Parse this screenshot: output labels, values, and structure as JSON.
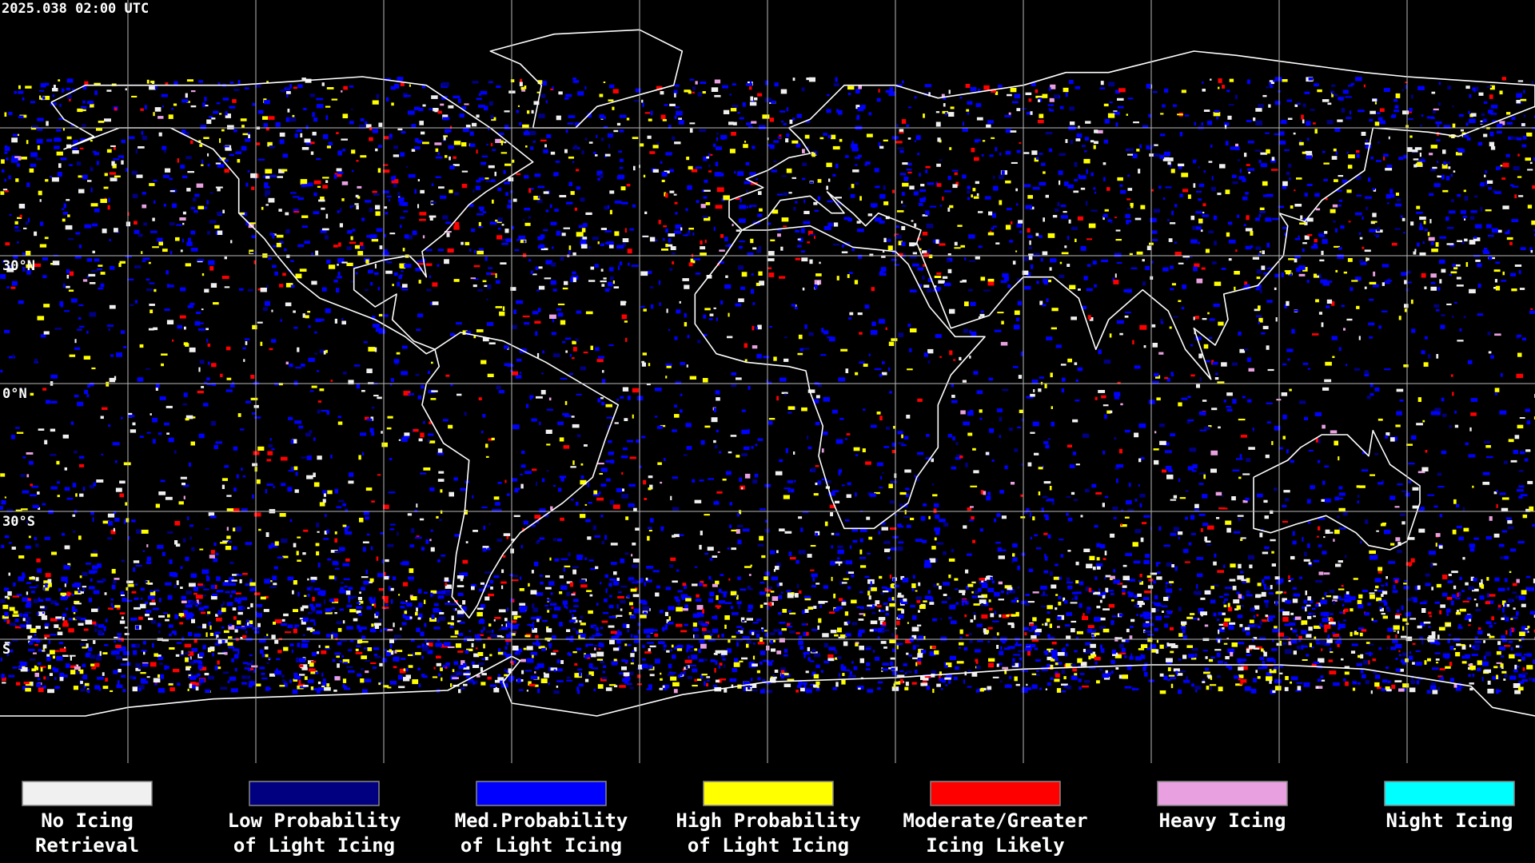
{
  "timestamp": "2025.038 02:00 UTC",
  "lat_labels": [
    "30°N",
    "0°N",
    "30°S",
    "S"
  ],
  "legend": [
    {
      "lines": [
        "No Icing",
        "Retrieval"
      ],
      "color": "#f0f0f0"
    },
    {
      "lines": [
        "Low Probability",
        "of Light Icing"
      ],
      "color": "#000080"
    },
    {
      "lines": [
        "Med.Probability",
        "of Light Icing"
      ],
      "color": "#0000ff"
    },
    {
      "lines": [
        "High Probability",
        "of Light Icing"
      ],
      "color": "#ffff00"
    },
    {
      "lines": [
        "Moderate/Greater",
        "Icing Likely"
      ],
      "color": "#ff0000"
    },
    {
      "lines": [
        "Heavy Icing"
      ],
      "color": "#e8a0e0"
    },
    {
      "lines": [
        "Night Icing"
      ],
      "color": "#00ffff"
    }
  ]
}
